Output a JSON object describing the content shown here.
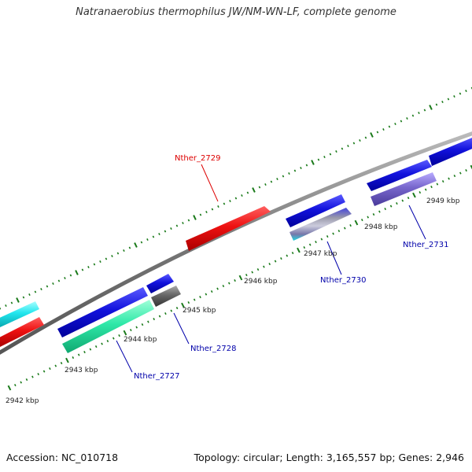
{
  "title": "Natranaerobius thermophilus JW/NM-WN-LF, complete genome",
  "footer": {
    "accession": "Accession: NC_010718",
    "stats": "Topology: circular; Length: 3,165,557 bp; Genes: 2,946"
  },
  "scale_labels": [
    "2942 kbp",
    "2943 kbp",
    "2944 kbp",
    "2945 kbp",
    "2946 kbp",
    "2947 kbp",
    "2948 kbp",
    "2949 kbp"
  ],
  "gene_labels": [
    {
      "name": "Nther_2729",
      "color": "#dd0000"
    },
    {
      "name": "Nther_2730",
      "color": "#0000aa"
    },
    {
      "name": "Nther_2731",
      "color": "#0000aa"
    },
    {
      "name": "Nther_2728",
      "color": "#0000aa"
    },
    {
      "name": "Nther_2727",
      "color": "#0000aa"
    }
  ],
  "colors": {
    "backbone": "#8a8a8a",
    "tick": "#1a7a1a",
    "blue": "#1010dd",
    "red": "#ee1111",
    "cyan": "#22e6ee",
    "teal": "#2ee8a8",
    "gray": "#666666",
    "purple": "#7766cc"
  }
}
